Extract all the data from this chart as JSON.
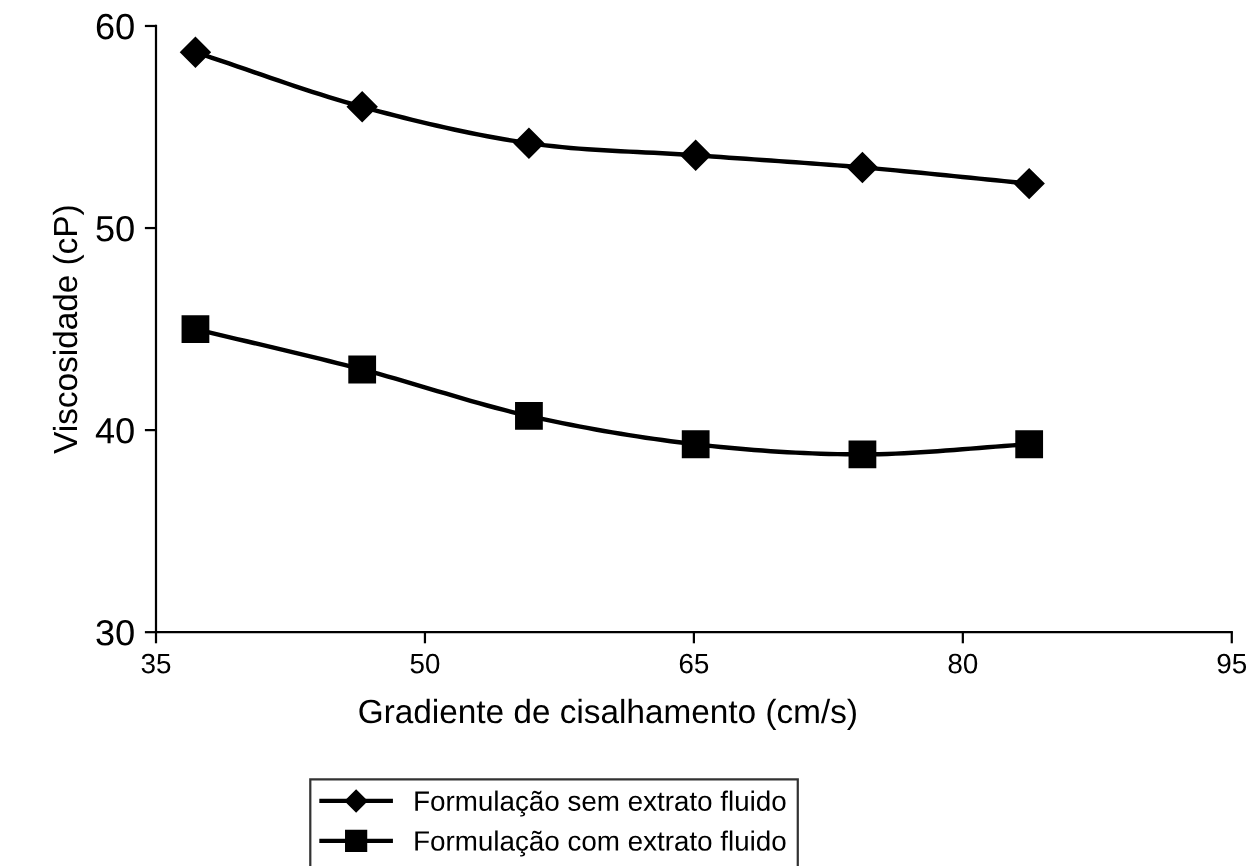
{
  "chart_data": {
    "type": "line",
    "xlabel": "Gradiente de cisalhamento (cm/s)",
    "ylabel": "Viscosidade (cP)",
    "x": [
      37.2,
      46.5,
      55.8,
      65.1,
      74.4,
      83.7
    ],
    "series": [
      {
        "name": "Formulação sem extrato fluido",
        "color": "#000000",
        "marker": "diamond",
        "values": [
          58.7,
          56.0,
          54.2,
          53.6,
          53.0,
          52.2
        ]
      },
      {
        "name": "Formulação com extrato fluido",
        "color": "#000000",
        "marker": "square",
        "values": [
          45.0,
          43.0,
          40.7,
          39.3,
          38.8,
          39.3
        ]
      }
    ],
    "xlim": [
      35,
      95
    ],
    "xticks": [
      35,
      50,
      65,
      80,
      95
    ],
    "ylim": [
      30,
      60
    ],
    "yticks": [
      30,
      40,
      50,
      60
    ],
    "grid": false,
    "legend": "bottom",
    "line_style": "solid"
  }
}
